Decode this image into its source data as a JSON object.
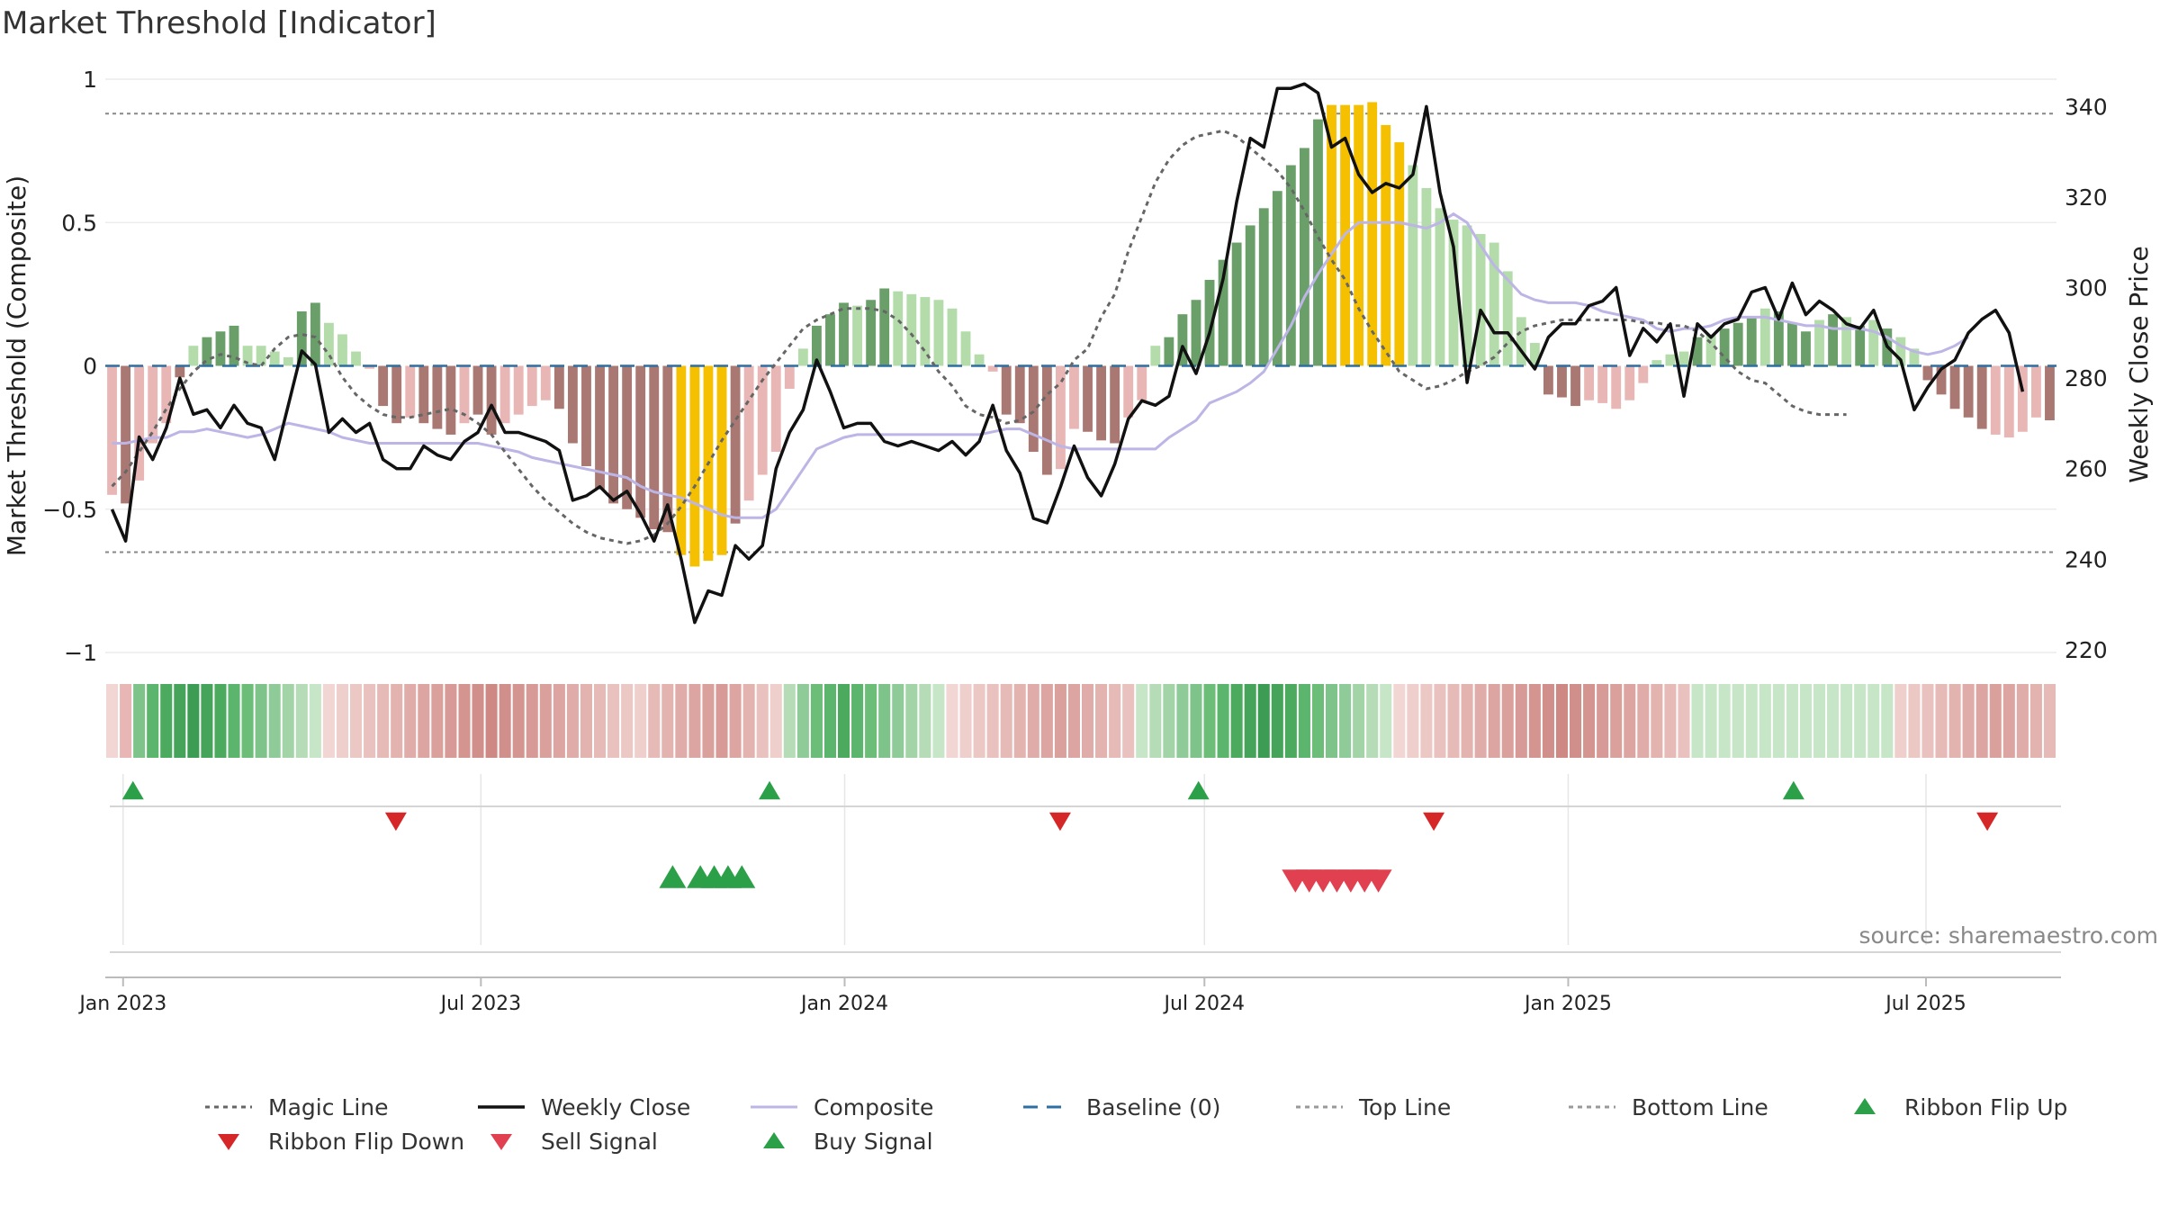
{
  "chart_data": {
    "type": "bar",
    "title": "Market Threshold [Indicator]",
    "ylabel": "Market Threshold (Composite)",
    "y2label": "Weekly Close Price",
    "ylim": [
      -1,
      1
    ],
    "y2lim": [
      215,
      352
    ],
    "yticks": [
      "1",
      "0.5",
      "0",
      "−0.5",
      "−1"
    ],
    "y2ticks": [
      "340",
      "320",
      "300",
      "280",
      "260",
      "240",
      "220"
    ],
    "xticks": [
      "Jan 2023",
      "Jul 2023",
      "Jan 2024",
      "Jul 2024",
      "Jan 2025",
      "Jul 2025"
    ],
    "x_start": "2022-12-23",
    "x_end": "2025-09-05",
    "top_line": 0.88,
    "bottom_line": -0.65,
    "composite": [
      -0.27,
      -0.27,
      -0.26,
      -0.25,
      -0.25,
      -0.23,
      -0.23,
      -0.22,
      -0.23,
      -0.24,
      -0.25,
      -0.24,
      -0.22,
      -0.2,
      -0.21,
      -0.22,
      -0.23,
      -0.25,
      -0.26,
      -0.27,
      -0.27,
      -0.27,
      -0.27,
      -0.27,
      -0.27,
      -0.27,
      -0.27,
      -0.27,
      -0.28,
      -0.29,
      -0.3,
      -0.32,
      -0.33,
      -0.34,
      -0.35,
      -0.36,
      -0.37,
      -0.38,
      -0.39,
      -0.42,
      -0.44,
      -0.45,
      -0.46,
      -0.48,
      -0.5,
      -0.52,
      -0.53,
      -0.53,
      -0.53,
      -0.5,
      -0.43,
      -0.36,
      -0.29,
      -0.27,
      -0.25,
      -0.24,
      -0.24,
      -0.24,
      -0.24,
      -0.24,
      -0.24,
      -0.24,
      -0.24,
      -0.24,
      -0.24,
      -0.23,
      -0.22,
      -0.22,
      -0.24,
      -0.26,
      -0.28,
      -0.29,
      -0.29,
      -0.29,
      -0.29,
      -0.29,
      -0.29,
      -0.29,
      -0.25,
      -0.22,
      -0.19,
      -0.13,
      -0.11,
      -0.09,
      -0.06,
      -0.02,
      0.06,
      0.14,
      0.24,
      0.32,
      0.39,
      0.46,
      0.5,
      0.5,
      0.5,
      0.5,
      0.49,
      0.48,
      0.5,
      0.53,
      0.5,
      0.42,
      0.35,
      0.3,
      0.25,
      0.23,
      0.22,
      0.22,
      0.22,
      0.21,
      0.19,
      0.18,
      0.17,
      0.16,
      0.13,
      0.12,
      0.13,
      0.13,
      0.14,
      0.16,
      0.17,
      0.17,
      0.17,
      0.16,
      0.15,
      0.14,
      0.14,
      0.13,
      0.13,
      0.13,
      0.12,
      0.1,
      0.07,
      0.05,
      0.04,
      0.05,
      0.07,
      0.1
    ],
    "magic_line": [
      -0.42,
      -0.37,
      -0.3,
      -0.23,
      -0.15,
      -0.08,
      -0.02,
      0.02,
      0.04,
      0.03,
      0.01,
      0.0,
      0.06,
      0.1,
      0.11,
      0.1,
      0.04,
      -0.04,
      -0.1,
      -0.14,
      -0.17,
      -0.18,
      -0.18,
      -0.17,
      -0.16,
      -0.15,
      -0.17,
      -0.2,
      -0.24,
      -0.3,
      -0.36,
      -0.42,
      -0.47,
      -0.51,
      -0.55,
      -0.58,
      -0.6,
      -0.61,
      -0.62,
      -0.61,
      -0.59,
      -0.55,
      -0.49,
      -0.42,
      -0.34,
      -0.26,
      -0.19,
      -0.12,
      -0.05,
      0.01,
      0.07,
      0.13,
      0.16,
      0.18,
      0.2,
      0.2,
      0.2,
      0.19,
      0.16,
      0.11,
      0.05,
      -0.02,
      -0.07,
      -0.14,
      -0.17,
      -0.18,
      -0.2,
      -0.19,
      -0.16,
      -0.1,
      -0.06,
      0.02,
      0.06,
      0.17,
      0.25,
      0.4,
      0.52,
      0.64,
      0.72,
      0.77,
      0.8,
      0.81,
      0.82,
      0.8,
      0.76,
      0.72,
      0.68,
      0.62,
      0.54,
      0.45,
      0.37,
      0.3,
      0.2,
      0.12,
      0.05,
      -0.02,
      -0.05,
      -0.08,
      -0.07,
      -0.05,
      -0.02,
      0.0,
      0.03,
      0.08,
      0.12,
      0.14,
      0.15,
      0.16,
      0.16,
      0.16,
      0.16,
      0.16,
      0.16,
      0.15,
      0.15,
      0.14,
      0.14,
      0.12,
      0.08,
      0.03,
      -0.02,
      -0.05,
      -0.06,
      -0.1,
      -0.14,
      -0.16,
      -0.17,
      -0.17,
      -0.17
    ],
    "weekly_close": [
      251,
      244,
      267,
      262,
      269,
      280,
      272,
      273,
      269,
      274,
      270,
      269,
      262,
      274,
      286,
      283,
      268,
      271,
      268,
      270,
      262,
      260,
      260,
      265,
      263,
      262,
      266,
      268,
      274,
      268,
      268,
      267,
      266,
      264,
      253,
      254,
      256,
      253,
      255,
      250,
      244,
      252,
      240,
      226,
      233,
      232,
      243,
      240,
      243,
      260,
      268,
      273,
      284,
      277,
      269,
      270,
      270,
      266,
      265,
      266,
      265,
      264,
      266,
      263,
      266,
      274,
      264,
      259,
      249,
      248,
      256,
      265,
      258,
      254,
      261,
      271,
      275,
      274,
      276,
      287,
      281,
      290,
      302,
      319,
      333,
      331,
      344,
      344,
      345,
      343,
      331,
      333,
      325,
      321,
      323,
      322,
      325,
      340,
      321,
      309,
      279,
      295,
      290,
      290,
      286,
      282,
      289,
      292,
      292,
      296,
      297,
      300,
      285,
      291,
      288,
      292,
      276,
      292,
      289,
      292,
      293,
      299,
      300,
      293,
      301,
      294,
      297,
      295,
      292,
      291,
      295,
      287,
      284,
      273,
      278,
      282,
      284,
      290,
      293,
      295,
      290,
      277
    ],
    "bar_values": [
      -0.45,
      -0.48,
      -0.4,
      -0.27,
      -0.2,
      -0.04,
      0.07,
      0.1,
      0.12,
      0.14,
      0.07,
      0.07,
      0.05,
      0.03,
      0.19,
      0.22,
      0.15,
      0.11,
      0.05,
      -0.01,
      -0.14,
      -0.2,
      -0.18,
      -0.2,
      -0.22,
      -0.24,
      -0.2,
      -0.17,
      -0.24,
      -0.2,
      -0.17,
      -0.14,
      -0.12,
      -0.15,
      -0.27,
      -0.35,
      -0.43,
      -0.48,
      -0.5,
      -0.53,
      -0.57,
      -0.58,
      -0.66,
      -0.7,
      -0.68,
      -0.66,
      -0.55,
      -0.47,
      -0.38,
      -0.3,
      -0.08,
      0.06,
      0.14,
      0.18,
      0.22,
      0.21,
      0.23,
      0.27,
      0.26,
      0.25,
      0.24,
      0.23,
      0.2,
      0.12,
      0.04,
      -0.02,
      -0.17,
      -0.2,
      -0.3,
      -0.38,
      -0.36,
      -0.22,
      -0.23,
      -0.26,
      -0.27,
      -0.18,
      -0.12,
      0.07,
      0.1,
      0.18,
      0.23,
      0.3,
      0.37,
      0.43,
      0.49,
      0.55,
      0.61,
      0.7,
      0.76,
      0.86,
      0.91,
      0.91,
      0.91,
      0.92,
      0.84,
      0.78,
      0.7,
      0.62,
      0.55,
      0.51,
      0.49,
      0.46,
      0.43,
      0.33,
      0.17,
      0.08,
      -0.1,
      -0.11,
      -0.14,
      -0.12,
      -0.13,
      -0.15,
      -0.12,
      -0.06,
      0.02,
      0.04,
      0.05,
      0.1,
      0.11,
      0.13,
      0.15,
      0.17,
      0.2,
      0.19,
      0.15,
      0.12,
      0.16,
      0.18,
      0.17,
      0.14,
      0.16,
      0.13,
      0.1,
      0.06,
      -0.05,
      -0.1,
      -0.15,
      -0.18,
      -0.22,
      -0.24,
      -0.25,
      -0.23,
      -0.18,
      -0.19
    ],
    "bar_colors": [
      "#e8b6b4",
      "#a97873",
      "#e8b6b4",
      "#e8b6b4",
      "#e8b6b4",
      "#a97873",
      "#b3dcaa",
      "#6a9f6a",
      "#6a9f6a",
      "#6a9f6a",
      "#b3dcaa",
      "#b3dcaa",
      "#b3dcaa",
      "#b3dcaa",
      "#6a9f6a",
      "#6a9f6a",
      "#b3dcaa",
      "#b3dcaa",
      "#b3dcaa",
      "#e8b6b4",
      "#a97873",
      "#a97873",
      "#e8b6b4",
      "#a97873",
      "#a97873",
      "#a97873",
      "#e8b6b4",
      "#a97873",
      "#a97873",
      "#e8b6b4",
      "#e8b6b4",
      "#e8b6b4",
      "#e8b6b4",
      "#a97873",
      "#a97873",
      "#a97873",
      "#a97873",
      "#a97873",
      "#a97873",
      "#a97873",
      "#a97873",
      "#a97873",
      "#f5c000",
      "#f5c000",
      "#f5c000",
      "#f5c000",
      "#a97873",
      "#e8b6b4",
      "#e8b6b4",
      "#e8b6b4",
      "#e8b6b4",
      "#b3dcaa",
      "#6a9f6a",
      "#6a9f6a",
      "#6a9f6a",
      "#b3dcaa",
      "#6a9f6a",
      "#6a9f6a",
      "#b3dcaa",
      "#b3dcaa",
      "#b3dcaa",
      "#b3dcaa",
      "#b3dcaa",
      "#b3dcaa",
      "#b3dcaa",
      "#e8b6b4",
      "#a97873",
      "#a97873",
      "#a97873",
      "#a97873",
      "#e8b6b4",
      "#e8b6b4",
      "#a97873",
      "#a97873",
      "#a97873",
      "#e8b6b4",
      "#e8b6b4",
      "#b3dcaa",
      "#6a9f6a",
      "#6a9f6a",
      "#6a9f6a",
      "#6a9f6a",
      "#6a9f6a",
      "#6a9f6a",
      "#6a9f6a",
      "#6a9f6a",
      "#6a9f6a",
      "#6a9f6a",
      "#6a9f6a",
      "#6a9f6a",
      "#f5c000",
      "#f5c000",
      "#f5c000",
      "#f5c000",
      "#f5c000",
      "#f5c000",
      "#b3dcaa",
      "#b3dcaa",
      "#b3dcaa",
      "#b3dcaa",
      "#b3dcaa",
      "#b3dcaa",
      "#b3dcaa",
      "#b3dcaa",
      "#b3dcaa",
      "#b3dcaa",
      "#a97873",
      "#a97873",
      "#a97873",
      "#e8b6b4",
      "#e8b6b4",
      "#e8b6b4",
      "#e8b6b4",
      "#e8b6b4",
      "#b3dcaa",
      "#b3dcaa",
      "#b3dcaa",
      "#6a9f6a",
      "#b3dcaa",
      "#6a9f6a",
      "#6a9f6a",
      "#6a9f6a",
      "#b3dcaa",
      "#6a9f6a",
      "#6a9f6a",
      "#6a9f6a",
      "#b3dcaa",
      "#6a9f6a",
      "#b3dcaa",
      "#6a9f6a",
      "#b3dcaa",
      "#6a9f6a",
      "#b3dcaa",
      "#b3dcaa",
      "#a97873",
      "#a97873",
      "#a97873",
      "#a97873",
      "#a97873",
      "#e8b6b4",
      "#e8b6b4",
      "#e8b6b4",
      "#e8b6b4",
      "#a97873"
    ],
    "ribbon_colors": [
      "#f2d6d4",
      "#e8b6b4",
      "#7ec38a",
      "#5bb56c",
      "#4caa5f",
      "#45a35a",
      "#3d9c53",
      "#45a35a",
      "#4caa5f",
      "#5bb56c",
      "#6bbd78",
      "#7ec38a",
      "#8fcb98",
      "#a3d4a8",
      "#b6dcb7",
      "#c7e5c7",
      "#f2d6d4",
      "#efcfcc",
      "#ecc8c5",
      "#e9c1be",
      "#e6bab7",
      "#e3b3b0",
      "#e0aca9",
      "#dda5a2",
      "#daa09c",
      "#d79a96",
      "#d49490",
      "#d18f8b",
      "#ce8984",
      "#d18f8b",
      "#d49490",
      "#d79a96",
      "#daa09c",
      "#dda5a2",
      "#e0aca9",
      "#e3b3b0",
      "#e6bab7",
      "#e9c1be",
      "#ecc8c5",
      "#efcfcc",
      "#e6bab7",
      "#e3b3b0",
      "#e0aca9",
      "#dda5a2",
      "#daa09c",
      "#d79a96",
      "#dda5a2",
      "#e3b3b0",
      "#e9c1be",
      "#efcfcc",
      "#b6dcb7",
      "#8fcb98",
      "#6bbd78",
      "#5bb56c",
      "#4caa5f",
      "#5bb56c",
      "#6bbd78",
      "#7ec38a",
      "#8fcb98",
      "#a3d4a8",
      "#b6dcb7",
      "#c7e5c7",
      "#f2d6d4",
      "#efcfcc",
      "#ecc8c5",
      "#e9c1be",
      "#e6bab7",
      "#e3b3b0",
      "#e0aca9",
      "#dda5a2",
      "#daa09c",
      "#dda5a2",
      "#e0aca9",
      "#e3b3b0",
      "#e6bab7",
      "#e9c1be",
      "#c7e5c7",
      "#b6dcb7",
      "#a3d4a8",
      "#8fcb98",
      "#7ec38a",
      "#6bbd78",
      "#5bb56c",
      "#4caa5f",
      "#45a35a",
      "#3d9c53",
      "#45a35a",
      "#4caa5f",
      "#5bb56c",
      "#6bbd78",
      "#7ec38a",
      "#8fcb98",
      "#a3d4a8",
      "#b6dcb7",
      "#c7e5c7",
      "#f2d6d4",
      "#efcfcc",
      "#ecc8c5",
      "#e9c1be",
      "#e6bab7",
      "#e3b3b0",
      "#e0aca9",
      "#dda5a2",
      "#daa09c",
      "#d79a96",
      "#d49490",
      "#d18f8b",
      "#ce8984",
      "#d18f8b",
      "#d49490",
      "#d79a96",
      "#daa09c",
      "#dda5a2",
      "#e0aca9",
      "#e3b3b0",
      "#e6bab7",
      "#e9c1be",
      "#c7e5c7",
      "#c7e5c7",
      "#c7e5c7",
      "#c7e5c7",
      "#c7e5c7",
      "#c7e5c7",
      "#c7e5c7",
      "#c7e5c7",
      "#c7e5c7",
      "#c7e5c7",
      "#c7e5c7",
      "#c7e5c7",
      "#c7e5c7",
      "#c7e5c7",
      "#c7e5c7",
      "#efcfcc",
      "#ecc8c5",
      "#e9c1be",
      "#e6bab7",
      "#e3b3b0",
      "#e0aca9",
      "#dda5a2",
      "#daa09c",
      "#dda5a2",
      "#e0aca9",
      "#e3b3b0",
      "#e6bab7"
    ],
    "ribbon_flip_up": [
      "2023-01-06",
      "2023-11-24",
      "2024-06-28",
      "2025-04-25"
    ],
    "ribbon_flip_down": [
      "2023-05-19",
      "2024-04-19",
      "2024-10-25",
      "2025-08-01"
    ],
    "buy_signals": [
      "2023-10-06",
      "2023-10-20",
      "2023-10-27",
      "2023-11-03",
      "2023-11-10"
    ],
    "sell_signals": [
      "2024-08-16",
      "2024-08-23",
      "2024-08-30",
      "2024-09-06",
      "2024-09-13",
      "2024-09-20",
      "2024-09-27"
    ],
    "colors": {
      "bar_strong_green": "#6a9f6a",
      "bar_light_green": "#b3dcaa",
      "bar_strong_red": "#a97873",
      "bar_light_red": "#e8b6b4",
      "bar_extreme": "#f5c000",
      "weekly_close": "#111111",
      "composite": "#bcb5e6",
      "magic_line": "#666666",
      "baseline": "#2e6fa3",
      "flip_up": "#2ca048",
      "flip_down": "#d62728",
      "buy": "#2ca048",
      "sell": "#e0404f"
    },
    "source": "source: sharemaestro.com",
    "legend_position": "bottom",
    "legend": [
      {
        "label": "Magic Line",
        "icon": "dotted-line"
      },
      {
        "label": "Weekly Close",
        "icon": "solid-line"
      },
      {
        "label": "Composite",
        "icon": "purple-line"
      },
      {
        "label": "Baseline (0)",
        "icon": "dashed-line"
      },
      {
        "label": "Top Line",
        "icon": "dotted-line"
      },
      {
        "label": "Bottom Line",
        "icon": "dotted-line"
      },
      {
        "label": "Ribbon Flip Up",
        "icon": "triangle-up"
      },
      {
        "label": "Ribbon Flip Down",
        "icon": "triangle-down"
      },
      {
        "label": "Sell Signal",
        "icon": "triangle-down"
      },
      {
        "label": "Buy Signal",
        "icon": "triangle-up"
      }
    ]
  }
}
